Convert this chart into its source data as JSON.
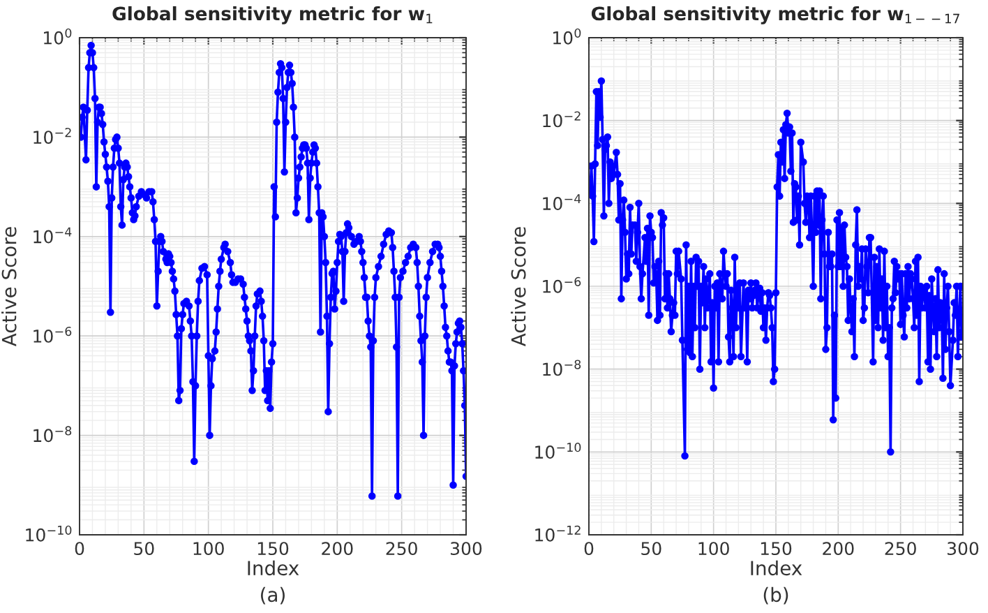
{
  "chart_data": [
    {
      "type": "line",
      "title": "Global sensitivity metric for w$_{1}$",
      "xlabel": "Index",
      "ylabel": "Active Score",
      "annotations": [
        "(a)"
      ],
      "log": "y",
      "grid": true,
      "marker": "circle",
      "line_style": "solid",
      "xlim": [
        0,
        300
      ],
      "xticks": [
        0,
        50,
        100,
        150,
        200,
        250,
        300
      ],
      "ylim": [
        1e-10,
        1
      ],
      "yticks": [
        {
          "value": 1e-10,
          "label": "10$^{−10}$"
        },
        {
          "value": 1e-08,
          "label": "10$^{−8}$"
        },
        {
          "value": 1e-06,
          "label": "10$^{−6}$"
        },
        {
          "value": 0.0001,
          "label": "10$^{−4}$"
        },
        {
          "value": 0.01,
          "label": "10$^{−2}$"
        },
        {
          "value": 1,
          "label": "10$^{0}$"
        }
      ],
      "series": [
        {
          "color": "#0000ff",
          "x": [
            1,
            2,
            3,
            5,
            6,
            7,
            8,
            9,
            10,
            11,
            12,
            13,
            14,
            15,
            16,
            17,
            18,
            19,
            20,
            21,
            22,
            23,
            24,
            25,
            26,
            27,
            28,
            29,
            30,
            31,
            32,
            33,
            34,
            35,
            36,
            37,
            38,
            39,
            40,
            41,
            42,
            43,
            44,
            46,
            48,
            50,
            52,
            54,
            56,
            57,
            58,
            59,
            60,
            61,
            62,
            63,
            64,
            65,
            67,
            68,
            69,
            70,
            71,
            72,
            73,
            74,
            75,
            76,
            77,
            78,
            79,
            80,
            81,
            83,
            85,
            86,
            87,
            88,
            89,
            90,
            91,
            92,
            93,
            95,
            97,
            99,
            100,
            101,
            102,
            103,
            105,
            106,
            107,
            108,
            109,
            110,
            112,
            113,
            115,
            117,
            118,
            119,
            121,
            123,
            125,
            127,
            128,
            129,
            130,
            131,
            132,
            133,
            134,
            135,
            136,
            137,
            138,
            140,
            141,
            142,
            143,
            144,
            145,
            146,
            147,
            148,
            149,
            150,
            151,
            152,
            153,
            154,
            155,
            156,
            157,
            158,
            159,
            160,
            161,
            162,
            163,
            164,
            165,
            166,
            167,
            168,
            169,
            170,
            171,
            172,
            173,
            174,
            175,
            176,
            177,
            178,
            179,
            180,
            181,
            182,
            183,
            184,
            185,
            186,
            187,
            188,
            189,
            190,
            191,
            192,
            193,
            194,
            195,
            196,
            197,
            198,
            199,
            200,
            201,
            202,
            203,
            204,
            205,
            206,
            207,
            208,
            209,
            211,
            213,
            215,
            217,
            218,
            219,
            220,
            221,
            222,
            223,
            224,
            225,
            226,
            227,
            228,
            229,
            230,
            232,
            234,
            236,
            238,
            240,
            242,
            243,
            244,
            245,
            246,
            247,
            248,
            249,
            251,
            253,
            255,
            257,
            259,
            261,
            262,
            263,
            264,
            265,
            266,
            267,
            268,
            269,
            270,
            272,
            274,
            276,
            278,
            279,
            280,
            281,
            282,
            283,
            284,
            285,
            286,
            287,
            288,
            289,
            290,
            291,
            292,
            293,
            294,
            295,
            296,
            297,
            298,
            299,
            300
          ],
          "values": [
            0.01,
            0.025,
            0.04,
            0.0035,
            0.035,
            0.25,
            0.5,
            0.7,
            0.5,
            0.25,
            0.06,
            0.001,
            0.02,
            0.04,
            0.04,
            0.03,
            0.018,
            0.008,
            0.0045,
            0.0025,
            0.0013,
            0.0004,
            3e-06,
            0.0006,
            0.0025,
            0.006,
            0.009,
            0.01,
            0.006,
            0.003,
            0.0004,
            0.00017,
            0.0014,
            0.0025,
            0.003,
            0.0025,
            0.0016,
            0.001,
            0.0006,
            0.0003,
            0.00022,
            0.00026,
            0.0004,
            0.00065,
            0.0008,
            0.0007,
            0.0006,
            0.0008,
            0.0008,
            0.0005,
            0.00022,
            8e-05,
            4e-06,
            2e-05,
            8e-05,
            0.0001,
            8e-05,
            5e-05,
            3.5e-05,
            3e-05,
            4.5e-05,
            4e-05,
            3e-05,
            2e-05,
            1.4e-05,
            8e-06,
            2.7e-06,
            1e-06,
            5e-08,
            8e-08,
            1.4e-06,
            2.7e-06,
            4.5e-06,
            5e-06,
            4e-06,
            2e-06,
            1e-06,
            1.2e-07,
            3e-09,
            1e-07,
            1e-06,
            5e-06,
            1.3e-05,
            2.3e-05,
            2.5e-05,
            1.7e-05,
            4e-07,
            1e-08,
            1e-07,
            3.5e-07,
            5e-07,
            1.2e-06,
            3.5e-06,
            1e-05,
            2e-05,
            3.5e-05,
            6e-05,
            7e-05,
            5e-05,
            3e-05,
            1.7e-05,
            1.2e-05,
            1.2e-05,
            1.4e-05,
            1.4e-05,
            1.1e-05,
            6e-06,
            3.5e-06,
            2e-06,
            1e-06,
            8e-07,
            5e-07,
            8e-08,
            2e-07,
            1e-06,
            4e-06,
            7e-06,
            8e-06,
            5e-06,
            2.5e-06,
            8e-07,
            8e-08,
            2e-07,
            5e-08,
            2e-07,
            3.5e-08,
            3e-07,
            7e-07,
            0.001,
            0.00025,
            0.02,
            0.08,
            0.2,
            0.3,
            0.25,
            0.06,
            0.002,
            0.02,
            0.1,
            0.2,
            0.28,
            0.2,
            0.12,
            0.04,
            0.01,
            0.0003,
            0.0006,
            0.0015,
            0.0025,
            0.004,
            0.006,
            0.007,
            0.007,
            0.006,
            0.003,
            0.00022,
            0.0015,
            0.003,
            0.005,
            0.007,
            0.006,
            0.003,
            0.001,
            0.0003,
            1.2e-06,
            0.0003,
            0.00025,
            0.0001,
            3e-05,
            2.5e-06,
            3e-08,
            7e-07,
            6e-06,
            1.8e-05,
            2e-05,
            3.5e-06,
            8e-06,
            3e-05,
            8e-05,
            0.00011,
            0.0001,
            5e-05,
            5e-06,
            5e-05,
            0.00012,
            0.00018,
            0.00015,
            0.0001,
            7e-05,
            8e-05,
            0.0001,
            8e-05,
            5e-05,
            3e-05,
            1.5e-05,
            6e-06,
            6e-06,
            2e-06,
            1e-06,
            6e-07,
            6e-10,
            8e-07,
            6e-06,
            1.5e-05,
            2.5e-05,
            4e-05,
            7e-05,
            0.00011,
            0.00013,
            0.00012,
            6e-05,
            2e-05,
            6e-06,
            6e-07,
            6e-10,
            6e-06,
            1.5e-05,
            2e-05,
            3e-05,
            4e-05,
            6e-05,
            7e-05,
            6e-05,
            3e-05,
            1e-05,
            2.5e-06,
            8e-07,
            3e-07,
            1e-08,
            1e-06,
            6e-06,
            1.5e-05,
            3e-05,
            5e-05,
            7e-05,
            7e-05,
            6e-05,
            4e-05,
            2e-05,
            1e-05,
            4e-06,
            1.5e-06,
            1e-06,
            5e-07,
            3e-07,
            3e-07,
            2e-07,
            1e-09,
            2.5e-07,
            7e-07,
            1.2e-06,
            1.8e-06,
            2e-06,
            1.5e-06,
            7e-07,
            2e-07,
            4e-08,
            1.5e-09
          ]
        }
      ]
    },
    {
      "type": "line",
      "title": "Global sensitivity metric for w$_{1−−17}$",
      "xlabel": "Index",
      "ylabel": "Active Score",
      "annotations": [
        "(b)"
      ],
      "log": "y",
      "grid": true,
      "marker": "circle",
      "line_style": "solid",
      "xlim": [
        0,
        300
      ],
      "xticks": [
        0,
        50,
        100,
        150,
        200,
        250,
        300
      ],
      "ylim": [
        1e-12,
        1
      ],
      "yticks": [
        {
          "value": 1e-12,
          "label": "10$^{−12}$"
        },
        {
          "value": 1e-10,
          "label": "10$^{−10}$"
        },
        {
          "value": 1e-08,
          "label": "10$^{−8}$"
        },
        {
          "value": 1e-06,
          "label": "10$^{−6}$"
        },
        {
          "value": 0.0001,
          "label": "10$^{−4}$"
        },
        {
          "value": 0.01,
          "label": "10$^{−2}$"
        },
        {
          "value": 1,
          "label": "10$^{0}$"
        }
      ],
      "series": [
        {
          "color": "#0000ff",
          "x": [
            1,
            2,
            3,
            4,
            5,
            6,
            7,
            8,
            9,
            10,
            11,
            12,
            13,
            14,
            15,
            16,
            17,
            18,
            19,
            20,
            22,
            23,
            24,
            25,
            26,
            27,
            28,
            29,
            30,
            31,
            32,
            33,
            34,
            35,
            37,
            38,
            39,
            40,
            41,
            42,
            43,
            45,
            46,
            47,
            48,
            49,
            50,
            51,
            52,
            53,
            54,
            55,
            56,
            57,
            58,
            59,
            60,
            61,
            62,
            63,
            64,
            65,
            66,
            67,
            68,
            69,
            70,
            71,
            72,
            74,
            75,
            77,
            78,
            79,
            80,
            81,
            82,
            83,
            84,
            85,
            86,
            87,
            88,
            89,
            90,
            91,
            92,
            93,
            94,
            95,
            97,
            98,
            99,
            100,
            101,
            102,
            103,
            104,
            105,
            107,
            108,
            109,
            110,
            111,
            112,
            113,
            114,
            115,
            116,
            117,
            118,
            119,
            120,
            121,
            122,
            124,
            125,
            126,
            127,
            128,
            129,
            130,
            131,
            132,
            133,
            134,
            135,
            136,
            137,
            138,
            139,
            140,
            141,
            142,
            143,
            144,
            145,
            146,
            147,
            148,
            149,
            150,
            151,
            152,
            153,
            154,
            155,
            156,
            157,
            158,
            159,
            160,
            161,
            162,
            163,
            164,
            165,
            166,
            167,
            168,
            169,
            170,
            172,
            173,
            174,
            175,
            176,
            177,
            178,
            179,
            180,
            181,
            182,
            183,
            184,
            185,
            186,
            187,
            188,
            189,
            190,
            191,
            192,
            193,
            194,
            195,
            196,
            197,
            198,
            199,
            200,
            201,
            202,
            203,
            204,
            205,
            206,
            207,
            208,
            209,
            210,
            211,
            212,
            213,
            214,
            215,
            216,
            217,
            218,
            219,
            220,
            221,
            222,
            223,
            224,
            225,
            226,
            228,
            229,
            230,
            231,
            232,
            233,
            234,
            235,
            236,
            237,
            238,
            239,
            240,
            241,
            242,
            243,
            244,
            245,
            246,
            247,
            248,
            249,
            250,
            251,
            252,
            253,
            254,
            255,
            256,
            257,
            258,
            259,
            260,
            261,
            262,
            263,
            264,
            265,
            266,
            267,
            268,
            269,
            270,
            271,
            272,
            273,
            274,
            275,
            276,
            277,
            278,
            279,
            280,
            281,
            282,
            283,
            284,
            285,
            286,
            287,
            288,
            289,
            290,
            292,
            293,
            294,
            295,
            296,
            297,
            298,
            299,
            300
          ],
          "values": [
            0.0002,
            0.0008,
            0.00015,
            1.2e-05,
            0.0009,
            0.05,
            0.0025,
            0.05,
            0.012,
            0.09,
            0.0035,
            5e-05,
            0.002,
            0.0025,
            0.004,
            0.0001,
            0.001,
            0.0004,
            0.0008,
            0.0005,
            0.0017,
            0.0005,
            4e-05,
            0.0003,
            5e-07,
            4e-05,
            0.00012,
            2e-05,
            1.5e-06,
            6e-06,
            2e-06,
            8e-05,
            6e-06,
            3e-05,
            3e-05,
            4e-06,
            2e-05,
            0.0001,
            3e-06,
            5e-07,
            2e-06,
            1.5e-05,
            4e-06,
            2.5e-05,
            2e-07,
            5e-05,
            2e-05,
            1.5e-05,
            1.2e-06,
            3e-06,
            2e-06,
            1.5e-07,
            4e-06,
            2e-07,
            6e-05,
            3e-05,
            4.5e-05,
            5e-07,
            2e-06,
            3e-07,
            2e-06,
            5e-07,
            8e-08,
            2e-07,
            4e-07,
            2e-07,
            7e-06,
            2e-06,
            7e-06,
            1.5e-06,
            5e-08,
            8e-11,
            1e-05,
            3e-08,
            1e-06,
            2.5e-08,
            4e-06,
            2e-08,
            1e-06,
            1e-07,
            5e-06,
            1e-06,
            4e-06,
            1e-08,
            1e-06,
            4e-07,
            3e-06,
            1e-07,
            1.5e-06,
            3e-07,
            2e-06,
            1.5e-08,
            4e-07,
            3.5e-09,
            1e-06,
            3e-07,
            1.2e-06,
            1.5e-08,
            2e-06,
            5e-07,
            7e-06,
            2e-06,
            1e-06,
            2e-06,
            6e-08,
            1.5e-08,
            8e-07,
            3e-07,
            2e-08,
            5e-06,
            1e-07,
            1e-06,
            3e-07,
            1.2e-06,
            2e-08,
            1.2e-06,
            3e-07,
            6e-07,
            1.5e-08,
            8e-07,
            5e-07,
            1.2e-06,
            3e-07,
            6e-07,
            8e-07,
            1.2e-06,
            3e-07,
            6e-07,
            9e-07,
            2.5e-07,
            7e-07,
            1e-07,
            3e-07,
            5e-08,
            3e-07,
            7e-07,
            6e-07,
            3e-07,
            1e-07,
            5e-09,
            1e-08,
            7e-07,
            0.00025,
            0.0015,
            0.00015,
            0.003,
            0.001,
            0.006,
            0.0004,
            0.008,
            0.015,
            0.005,
            0.007,
            0.0006,
            0.005,
            3.5e-05,
            0.0003,
            0.00025,
            4e-05,
            0.00015,
            1e-05,
            0.003,
            0.001,
            0.0001,
            3.5e-05,
            0.00015,
            0.00012,
            1.5e-05,
            0.00015,
            2e-05,
            1e-06,
            0.00015,
            2e-05,
            0.0002,
            3e-05,
            0.0002,
            5e-07,
            4e-05,
            0.00015,
            6e-06,
            3e-08,
            1e-07,
            2e-05,
            3e-06,
            3e-06,
            6e-06,
            6e-10,
            2e-07,
            2e-09,
            4e-05,
            3e-06,
            6e-05,
            3e-06,
            2.5e-05,
            1e-06,
            3e-05,
            5e-06,
            3e-06,
            1.5e-07,
            1.5e-06,
            3e-07,
            8e-08,
            5e-07,
            2e-08,
            1e-05,
            7e-05,
            1e-06,
            3e-06,
            1.5e-06,
            8e-06,
            1.5e-07,
            3e-07,
            8e-06,
            3e-06,
            7e-07,
            1.5e-05,
            1.5e-05,
            1.5e-08,
            5e-06,
            1.5e-07,
            3e-06,
            1e-07,
            8e-06,
            3e-07,
            1.5e-06,
            5e-08,
            7e-06,
            1e-07,
            1e-06,
            2e-08,
            1e-07,
            1e-10,
            3e-07,
            5e-07,
            4e-06,
            7e-07,
            3e-06,
            1.5e-06,
            2e-06,
            1.2e-07,
            2e-06,
            2e-07,
            6e-08,
            2e-06,
            3e-07,
            3e-06,
            5e-07,
            2e-06,
            1.5e-06,
            5e-07,
            1e-07,
            4e-06,
            2e-07,
            5e-06,
            5e-09,
            1e-06,
            3e-07,
            6e-07,
            8e-07,
            3e-07,
            1e-06,
            1.5e-08,
            6e-07,
            1e-08,
            1.5e-06,
            3e-07,
            8e-08,
            5e-07,
            2e-08,
            2.5e-06,
            1e-07,
            4e-07,
            3e-07,
            6e-09,
            2e-06,
            3e-08,
            3e-07,
            1e-06,
            8e-08,
            4e-09,
            5e-08,
            4e-07,
            2e-07,
            1e-06,
            2e-08,
            2e-07,
            1e-06,
            6e-08,
            8e-08
          ]
        }
      ]
    }
  ]
}
